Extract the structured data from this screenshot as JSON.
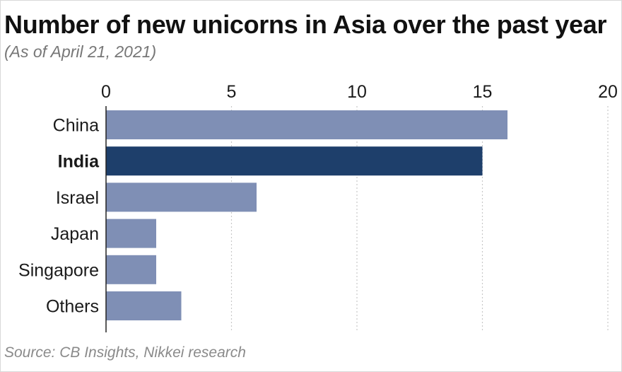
{
  "title": "Number of new unicorns in Asia over the past year",
  "subtitle": "(As of April 21, 2021)",
  "source": "Source: CB Insights, Nikkei research",
  "colors": {
    "bar_default": "#7f8fb5",
    "bar_highlight": "#1e3f6b",
    "grid": "#c8c8c8",
    "axis": "#222222",
    "label": "#1a1a1a"
  },
  "chart_data": {
    "type": "bar",
    "orientation": "horizontal",
    "categories": [
      "China",
      "India",
      "Israel",
      "Japan",
      "Singapore",
      "Others"
    ],
    "values": [
      16,
      15,
      6,
      2,
      2,
      3
    ],
    "highlight": "India",
    "xticks": [
      "0",
      "5",
      "10",
      "15",
      "20"
    ],
    "xlim": [
      0,
      20
    ],
    "grid": "vertical dotted",
    "title": "Number of new unicorns in Asia over the past year",
    "subtitle": "(As of April 21, 2021)",
    "xlabel": "",
    "ylabel": ""
  }
}
